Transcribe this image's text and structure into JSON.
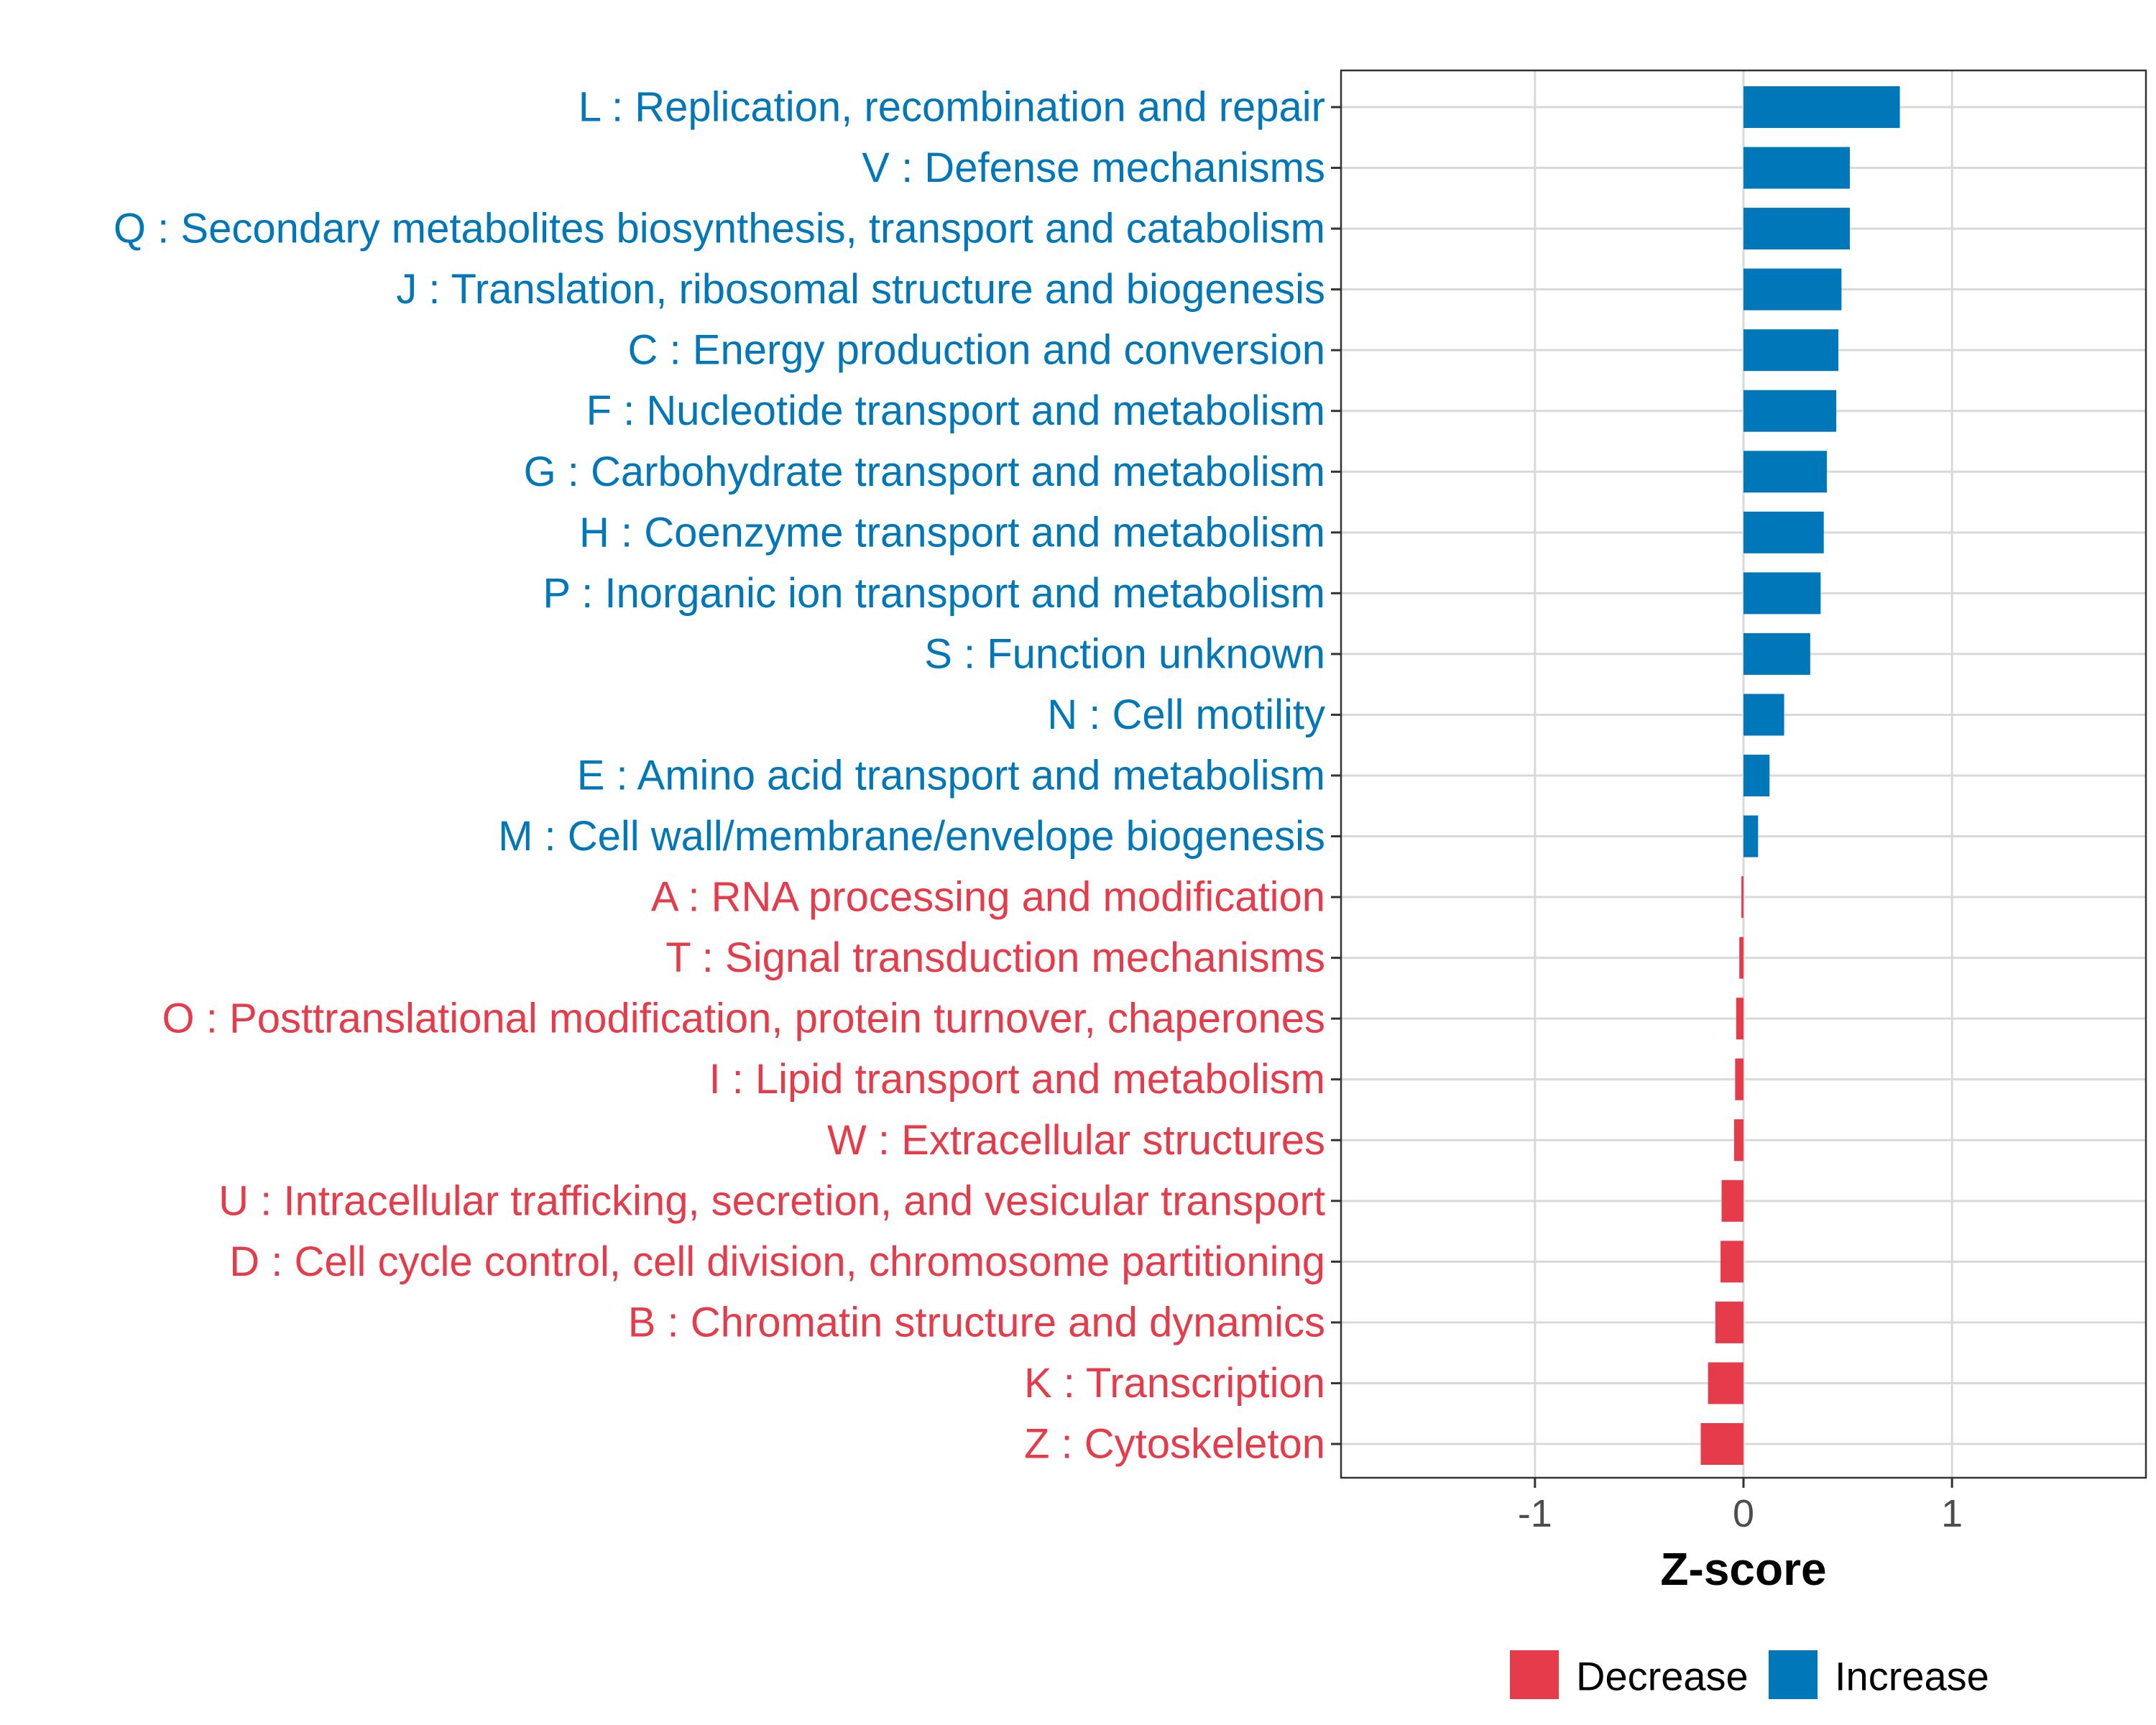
{
  "chart_data": {
    "type": "bar",
    "orientation": "horizontal",
    "xlabel": "Z-score",
    "ylabel": "",
    "xlim": [
      -1.93,
      1.93
    ],
    "x_ticks": [
      -1,
      0,
      1
    ],
    "x_tick_labels": [
      "-1",
      "0",
      "1"
    ],
    "grid": true,
    "colors": {
      "Decrease": "#e63b4a",
      "Increase": "#0077b8"
    },
    "categories": [
      "L : Replication, recombination and repair",
      "V : Defense mechanisms",
      "Q : Secondary metabolites biosynthesis, transport and catabolism",
      "J : Translation, ribosomal structure and biogenesis",
      "C : Energy production and conversion",
      "F : Nucleotide transport and metabolism",
      "G : Carbohydrate transport and metabolism",
      "H : Coenzyme transport and metabolism",
      "P : Inorganic ion transport and metabolism",
      "S : Function unknown",
      "N : Cell motility",
      "E : Amino acid transport and metabolism",
      "M : Cell wall/membrane/envelope biogenesis",
      "A : RNA processing and modification",
      "T : Signal transduction mechanisms",
      "O : Posttranslational modification, protein turnover, chaperones",
      "I : Lipid transport and metabolism",
      "W : Extracellular structures",
      "U : Intracellular trafficking, secretion, and vesicular transport",
      "D : Cell cycle control, cell division, chromosome partitioning",
      "B : Chromatin structure and dynamics",
      "K : Transcription",
      "Z : Cytoskeleton"
    ],
    "values": [
      0.75,
      0.51,
      0.51,
      0.47,
      0.455,
      0.445,
      0.4,
      0.385,
      0.37,
      0.32,
      0.195,
      0.125,
      0.07,
      -0.01,
      -0.02,
      -0.035,
      -0.04,
      -0.045,
      -0.105,
      -0.11,
      -0.135,
      -0.17,
      -0.205
    ],
    "groups": [
      "Increase",
      "Increase",
      "Increase",
      "Increase",
      "Increase",
      "Increase",
      "Increase",
      "Increase",
      "Increase",
      "Increase",
      "Increase",
      "Increase",
      "Increase",
      "Decrease",
      "Decrease",
      "Decrease",
      "Decrease",
      "Decrease",
      "Decrease",
      "Decrease",
      "Decrease",
      "Decrease",
      "Decrease"
    ],
    "legend": {
      "position": "bottom",
      "items": [
        {
          "label": "Decrease",
          "color": "#e63b4a"
        },
        {
          "label": "Increase",
          "color": "#0077b8"
        }
      ]
    }
  }
}
